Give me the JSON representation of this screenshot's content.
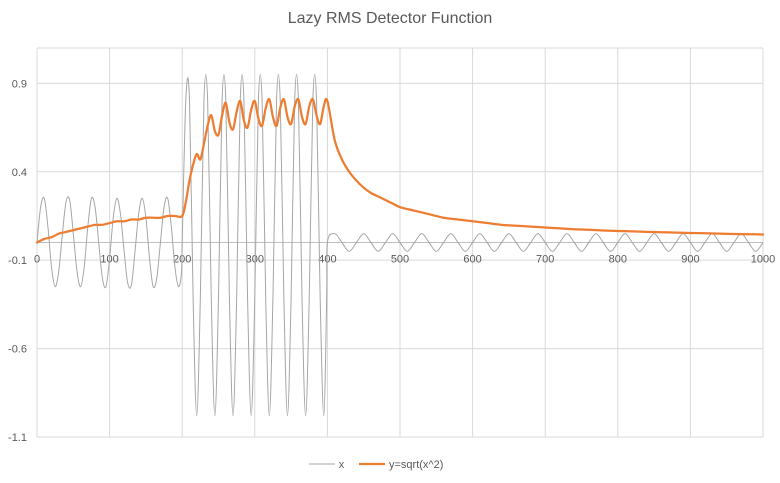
{
  "chart_data": {
    "type": "line",
    "title": "Lazy RMS Detector Function",
    "xlabel": "",
    "ylabel": "",
    "xlim": [
      0,
      1000
    ],
    "ylim": [
      -1.1,
      1.1
    ],
    "x_ticks": [
      0,
      100,
      200,
      300,
      400,
      500,
      600,
      700,
      800,
      900,
      1000
    ],
    "y_ticks": [
      0.9,
      0.4,
      -0.1,
      -0.6,
      -1.1
    ],
    "grid": true,
    "legend": "bottom",
    "series": [
      {
        "name": "x",
        "color": "#A5A5A5",
        "x": [
          0,
          5,
          10,
          15,
          20,
          25,
          30,
          35,
          40,
          45,
          50,
          55,
          60,
          65,
          70,
          75,
          80,
          85,
          90,
          95,
          100,
          105,
          110,
          115,
          120,
          125,
          130,
          135,
          140,
          145,
          150,
          155,
          160,
          165,
          170,
          175,
          180,
          185,
          190,
          195,
          199,
          200,
          205,
          210,
          215,
          220,
          225,
          230,
          235,
          240,
          245,
          250,
          255,
          260,
          265,
          270,
          275,
          280,
          285,
          290,
          295,
          300,
          305,
          310,
          315,
          320,
          325,
          330,
          335,
          340,
          345,
          350,
          355,
          360,
          365,
          370,
          375,
          380,
          385,
          390,
          395,
          399,
          400,
          410,
          420,
          430,
          440,
          450,
          460,
          470,
          480,
          490,
          500,
          510,
          520,
          530,
          540,
          550,
          560,
          570,
          580,
          590,
          600,
          610,
          620,
          630,
          640,
          650,
          660,
          670,
          680,
          690,
          700,
          710,
          720,
          730,
          740,
          750,
          760,
          770,
          780,
          790,
          800,
          810,
          820,
          830,
          840,
          850,
          860,
          870,
          880,
          890,
          900,
          910,
          920,
          930,
          940,
          950,
          960,
          970,
          980,
          990,
          1000
        ],
        "y": [
          0.0,
          0.2,
          0.25,
          0.09,
          -0.14,
          -0.25,
          -0.16,
          0.05,
          0.23,
          0.24,
          0.05,
          -0.16,
          -0.25,
          -0.14,
          0.09,
          0.25,
          0.2,
          0.0,
          -0.2,
          -0.25,
          -0.09,
          0.14,
          0.25,
          0.16,
          -0.05,
          -0.23,
          -0.24,
          -0.05,
          0.16,
          0.25,
          0.14,
          -0.09,
          -0.25,
          -0.2,
          0.0,
          0.2,
          0.25,
          0.09,
          -0.14,
          -0.25,
          -0.17,
          0.0,
          0.81,
          0.81,
          -0.31,
          -0.98,
          -0.31,
          0.81,
          0.81,
          -0.31,
          -0.98,
          -0.31,
          0.81,
          0.81,
          -0.31,
          -0.98,
          -0.31,
          0.81,
          0.81,
          -0.31,
          -0.98,
          -0.31,
          0.81,
          0.81,
          -0.31,
          -0.98,
          -0.31,
          0.81,
          0.81,
          -0.31,
          -0.98,
          -0.31,
          0.81,
          0.81,
          -0.31,
          -0.98,
          -0.31,
          0.81,
          0.81,
          -0.31,
          -0.98,
          -0.31,
          0.0,
          0.05,
          0.0,
          -0.05,
          0.0,
          0.05,
          0.0,
          -0.05,
          0.0,
          0.05,
          0.0,
          -0.05,
          0.0,
          0.05,
          0.0,
          -0.05,
          0.0,
          0.05,
          0.0,
          -0.05,
          0.0,
          0.05,
          0.0,
          -0.05,
          0.0,
          0.05,
          0.0,
          -0.05,
          0.0,
          0.05,
          0.0,
          -0.05,
          0.0,
          0.05,
          0.0,
          -0.05,
          0.0,
          0.05,
          0.0,
          -0.05,
          0.0,
          0.05,
          0.0,
          -0.05,
          0.0,
          0.05,
          0.0,
          -0.05,
          0.0,
          0.05,
          0.0,
          -0.05,
          0.0,
          0.05,
          0.0,
          -0.05,
          0.0,
          0.05,
          0.0,
          -0.05,
          0.0
        ]
      },
      {
        "name": "y=sqrt(x^2)",
        "color": "#ED7D31",
        "x": [
          0,
          10,
          20,
          30,
          40,
          50,
          60,
          70,
          80,
          90,
          100,
          110,
          120,
          130,
          140,
          150,
          160,
          170,
          180,
          190,
          200,
          205,
          210,
          215,
          220,
          225,
          230,
          235,
          240,
          245,
          250,
          255,
          260,
          265,
          270,
          275,
          280,
          285,
          290,
          295,
          300,
          305,
          310,
          315,
          320,
          325,
          330,
          335,
          340,
          345,
          350,
          355,
          360,
          365,
          370,
          375,
          380,
          385,
          390,
          395,
          400,
          410,
          420,
          430,
          440,
          450,
          460,
          470,
          480,
          490,
          500,
          520,
          540,
          560,
          580,
          600,
          620,
          640,
          660,
          680,
          700,
          720,
          740,
          760,
          780,
          800,
          820,
          840,
          860,
          880,
          900,
          920,
          940,
          960,
          980,
          1000
        ],
        "y": [
          0.0,
          0.02,
          0.03,
          0.05,
          0.06,
          0.07,
          0.08,
          0.09,
          0.1,
          0.1,
          0.11,
          0.12,
          0.12,
          0.13,
          0.13,
          0.14,
          0.14,
          0.14,
          0.15,
          0.15,
          0.15,
          0.23,
          0.35,
          0.44,
          0.5,
          0.47,
          0.56,
          0.66,
          0.72,
          0.63,
          0.61,
          0.72,
          0.79,
          0.68,
          0.64,
          0.74,
          0.8,
          0.69,
          0.65,
          0.75,
          0.8,
          0.7,
          0.66,
          0.76,
          0.81,
          0.71,
          0.66,
          0.76,
          0.81,
          0.71,
          0.67,
          0.77,
          0.81,
          0.71,
          0.67,
          0.77,
          0.81,
          0.72,
          0.67,
          0.77,
          0.8,
          0.58,
          0.47,
          0.4,
          0.35,
          0.31,
          0.28,
          0.26,
          0.24,
          0.22,
          0.2,
          0.18,
          0.16,
          0.14,
          0.13,
          0.12,
          0.11,
          0.1,
          0.095,
          0.09,
          0.085,
          0.08,
          0.075,
          0.072,
          0.068,
          0.065,
          0.063,
          0.06,
          0.058,
          0.056,
          0.054,
          0.052,
          0.05,
          0.048,
          0.047,
          0.045
        ]
      }
    ]
  }
}
